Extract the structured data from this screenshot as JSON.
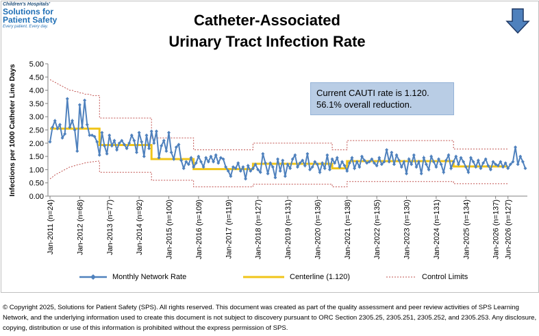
{
  "logo": {
    "line1": "Children's Hospitals'",
    "line2": "Solutions for",
    "line3": "Patient Safety",
    "line4": "Every patient. Every day."
  },
  "title_line1": "Catheter-Associated",
  "title_line2": "Urinary Tract Infection Rate",
  "annotation": {
    "line1": "Current CAUTI rate is 1.120.",
    "line2": "56.1% overall reduction."
  },
  "legend": {
    "series": "Monthly Network Rate",
    "centerline": "Centerline (1.120)",
    "limits": "Control Limits"
  },
  "copyright": "© Copyright 2025, Solutions for Patient Safety (SPS).  All rights reserved.  This document was created as part of the quality assessment and peer review activities of SPS Learning Network, and the underlying information used to create this document is not subject to discovery pursuant to ORC Section 2305.25, 2305.251, 2305.252, and 2305.253. Any disclosure, copying, distribution or use of this information is prohibited without the express permission of SPS.",
  "colors": {
    "series": "#4f81bd",
    "centerline": "#f0c419",
    "limits": "#c0504d",
    "annotation_bg": "#b9cde5"
  },
  "arrow_icon": "down-arrow-icon",
  "chart_data": {
    "type": "line",
    "ylabel": "Infections per 1000 Catheter Line Days",
    "ylim": [
      0,
      5
    ],
    "y_ticks": [
      "0.00",
      "0.50",
      "1.00",
      "1.50",
      "2.00",
      "2.50",
      "3.00",
      "3.50",
      "4.00",
      "4.50",
      "5.00"
    ],
    "x_tick_labels": [
      "Jan-2011 (n=24)",
      "Jan-2012 (n=68)",
      "Jan-2013 (n=77)",
      "Jan-2014 (n=92)",
      "Jan-2015 (n=100)",
      "Jan-2016 (n=109)",
      "Jan-2017 (n=119)",
      "Jan-2018 (n=127)",
      "Jan-2019 (n=131)",
      "Jan-2020 (n=136)",
      "Jan-2021 (n=138)",
      "Jan-2022 (n=135)",
      "Jan-2023 (n=130)",
      "Jan-2024 (n=131)",
      "Jan-2025 (n=134)",
      "Jan-2026 (n=137)",
      "Jun-2026 (n=127)"
    ],
    "x_tick_months": [
      0,
      12,
      24,
      36,
      48,
      60,
      72,
      84,
      96,
      108,
      120,
      132,
      144,
      156,
      168,
      180,
      185
    ],
    "grid": false,
    "series": [
      {
        "name": "Monthly Network Rate",
        "values": [
          2.05,
          2.6,
          2.85,
          2.55,
          2.7,
          2.2,
          2.35,
          3.68,
          2.6,
          2.85,
          2.5,
          1.7,
          3.45,
          2.6,
          3.62,
          2.7,
          2.3,
          2.3,
          2.25,
          2.05,
          1.55,
          2.4,
          1.9,
          1.6,
          2.3,
          1.9,
          2.1,
          1.75,
          2.0,
          2.1,
          1.95,
          1.8,
          2.0,
          2.3,
          2.1,
          1.65,
          2.4,
          2.05,
          1.5,
          2.3,
          1.8,
          2.45,
          2.0,
          2.45,
          1.45,
          1.9,
          2.1,
          1.7,
          2.4,
          1.65,
          1.4,
          1.85,
          1.95,
          1.35,
          1.05,
          1.3,
          1.2,
          1.45,
          1.1,
          1.25,
          1.5,
          1.3,
          1.1,
          1.45,
          1.3,
          1.5,
          1.3,
          1.55,
          1.25,
          1.45,
          1.4,
          1.1,
          0.95,
          0.75,
          1.1,
          1.05,
          1.25,
          0.95,
          1.1,
          0.65,
          1.15,
          0.95,
          1.05,
          1.2,
          1.0,
          0.9,
          1.6,
          1.25,
          0.85,
          1.25,
          1.1,
          0.7,
          1.4,
          0.95,
          1.35,
          0.75,
          1.2,
          1.05,
          1.4,
          1.55,
          1.1,
          1.25,
          1.35,
          1.15,
          1.6,
          1.0,
          1.1,
          1.3,
          1.2,
          0.9,
          1.25,
          1.05,
          1.55,
          1.0,
          1.4,
          1.25,
          1.45,
          1.1,
          1.3,
          1.15,
          0.95,
          1.25,
          1.45,
          1.05,
          1.3,
          1.1,
          1.5,
          1.35,
          1.25,
          1.3,
          1.4,
          1.25,
          1.15,
          1.45,
          1.2,
          1.3,
          1.75,
          1.3,
          1.65,
          1.2,
          1.55,
          1.35,
          1.1,
          1.3,
          0.85,
          1.4,
          1.2,
          1.55,
          1.1,
          1.3,
          0.85,
          1.45,
          1.2,
          1.0,
          1.5,
          1.3,
          1.1,
          1.4,
          1.2,
          0.9,
          1.35,
          1.55,
          1.05,
          1.3,
          1.5,
          1.2,
          1.45,
          1.3,
          1.1,
          0.9,
          1.45,
          1.3,
          1.1,
          1.35,
          1.05,
          1.25,
          1.4,
          1.15,
          1.0,
          1.3,
          1.2,
          1.15,
          1.3,
          1.1,
          1.25,
          1.05,
          1.2,
          1.3,
          1.85,
          1.2,
          1.5,
          1.3,
          1.05
        ]
      }
    ],
    "centerline_segments": [
      {
        "start": 0,
        "end": 20,
        "value": 2.55
      },
      {
        "start": 20,
        "end": 41,
        "value": 1.93
      },
      {
        "start": 41,
        "end": 58,
        "value": 1.4
      },
      {
        "start": 58,
        "end": 82,
        "value": 1.02
      },
      {
        "start": 82,
        "end": 114,
        "value": 1.22
      },
      {
        "start": 114,
        "end": 120,
        "value": 1.05
      },
      {
        "start": 120,
        "end": 163,
        "value": 1.32
      },
      {
        "start": 163,
        "end": 185,
        "value": 1.12
      }
    ],
    "control_limits": {
      "upper": [
        {
          "start": 0,
          "end": 20,
          "values": [
            4.4,
            4.35,
            4.3,
            4.25,
            4.2,
            4.15,
            4.1,
            4.05,
            4.0,
            4.0,
            3.95,
            3.95,
            3.9,
            3.9,
            3.85,
            3.85,
            3.85,
            3.8,
            3.8,
            3.8,
            3.8
          ]
        },
        {
          "start": 20,
          "end": 41,
          "value": 2.95
        },
        {
          "start": 41,
          "end": 58,
          "value": 2.2
        },
        {
          "start": 58,
          "end": 82,
          "value": 1.75
        },
        {
          "start": 82,
          "end": 114,
          "value": 2.0
        },
        {
          "start": 114,
          "end": 120,
          "value": 1.75
        },
        {
          "start": 120,
          "end": 163,
          "value": 2.1
        },
        {
          "start": 163,
          "end": 185,
          "value": 1.78
        }
      ],
      "lower": [
        {
          "start": 0,
          "end": 20,
          "values": [
            0.65,
            0.72,
            0.8,
            0.85,
            0.9,
            0.95,
            1.0,
            1.05,
            1.1,
            1.12,
            1.15,
            1.18,
            1.2,
            1.22,
            1.25,
            1.27,
            1.28,
            1.3,
            1.3,
            1.32,
            1.32
          ]
        },
        {
          "start": 20,
          "end": 41,
          "value": 0.9
        },
        {
          "start": 41,
          "end": 58,
          "value": 0.6
        },
        {
          "start": 58,
          "end": 82,
          "value": 0.35
        },
        {
          "start": 82,
          "end": 114,
          "value": 0.45
        },
        {
          "start": 114,
          "end": 120,
          "value": 0.35
        },
        {
          "start": 120,
          "end": 163,
          "value": 0.55
        },
        {
          "start": 163,
          "end": 185,
          "value": 0.47
        }
      ]
    }
  }
}
